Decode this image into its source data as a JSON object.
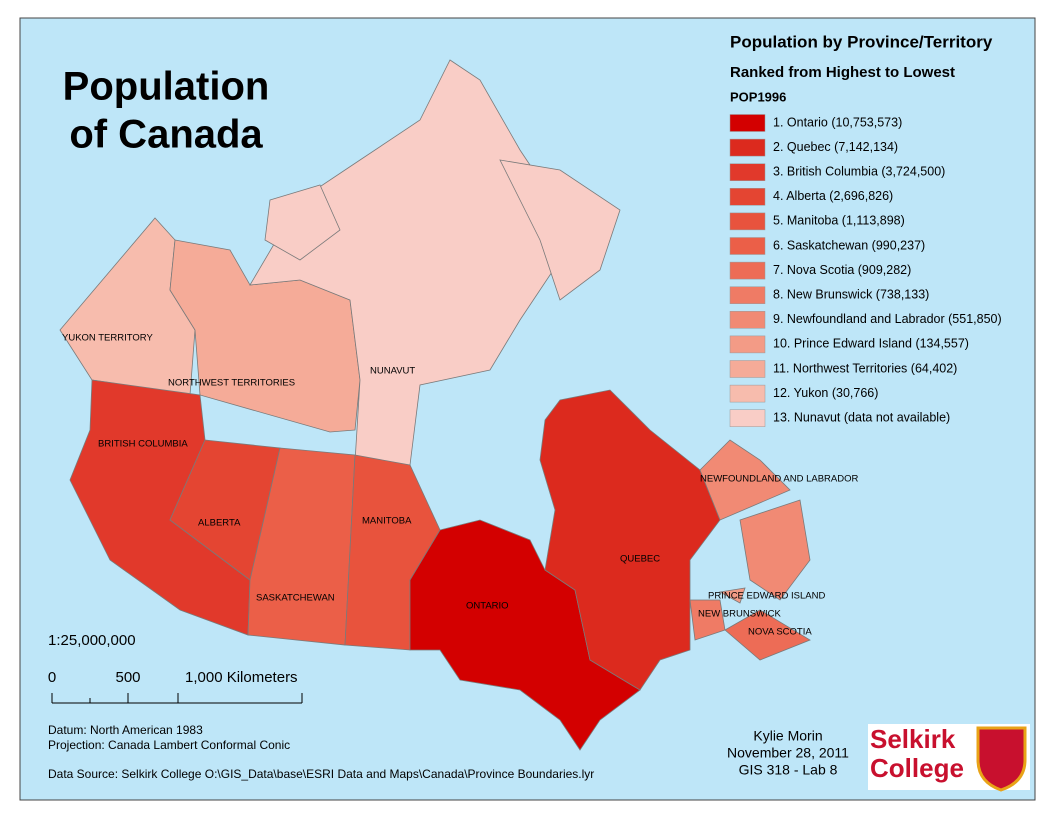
{
  "title_lines": [
    "Population",
    "of Canada"
  ],
  "legend": {
    "title": "Population by Province/Territory",
    "subtitle": "Ranked from Highest to Lowest",
    "field": "POP1996",
    "items": [
      {
        "label": "1. Ontario (10,753,573)",
        "color": "#d30000"
      },
      {
        "label": "2. Quebec (7,142,134)",
        "color": "#dc2a1e"
      },
      {
        "label": "3. British Columbia (3,724,500)",
        "color": "#e1392b"
      },
      {
        "label": "4. Alberta (2,696,826)",
        "color": "#e44532"
      },
      {
        "label": "5. Manitoba (1,113,898)",
        "color": "#e8533d"
      },
      {
        "label": "6. Saskatchewan (990,237)",
        "color": "#eb5f48"
      },
      {
        "label": "7. Nova Scotia (909,282)",
        "color": "#ed6c56"
      },
      {
        "label": "8. New Brunswick (738,133)",
        "color": "#ef7b65"
      },
      {
        "label": "9. Newfoundland and Labrador (551,850)",
        "color": "#f18a74"
      },
      {
        "label": "10. Prince Edward Island (134,557)",
        "color": "#f39b86"
      },
      {
        "label": "11. Northwest Territories (64,402)",
        "color": "#f5ab98"
      },
      {
        "label": "12. Yukon (30,766)",
        "color": "#f7bcad"
      },
      {
        "label": "13. Nunavut (data not available)",
        "color": "#f9cdc6"
      }
    ]
  },
  "map_labels": [
    "YUKON TERRITORY",
    "NORTHWEST TERRITORIES",
    "NUNAVUT",
    "BRITISH COLUMBIA",
    "ALBERTA",
    "SASKATCHEWAN",
    "MANITOBA",
    "ONTARIO",
    "QUEBEC",
    "NEWFOUNDLAND AND LABRADOR",
    "PRINCE EDWARD ISLAND",
    "NEW BRUNSWICK",
    "NOVA SCOTIA"
  ],
  "scale": {
    "ratio": "1:25,000,000",
    "labels": [
      "0",
      "500",
      "1,000 Kilometers"
    ]
  },
  "notes": [
    "Datum: North American 1983",
    "Projection: Canada Lambert Conformal Conic",
    "Data Source: Selkirk College  O:\\GIS_Data\\base\\ESRI Data and Maps\\Canada\\Province Boundaries.lyr"
  ],
  "author": [
    "Kylie Morin",
    "November 28, 2011",
    "GIS 318 - Lab 8"
  ],
  "logo": [
    "Selkirk",
    "College"
  ]
}
